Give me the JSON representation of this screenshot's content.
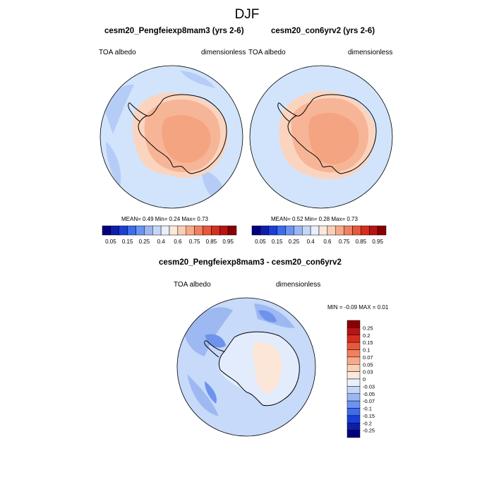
{
  "page_title": "DJF",
  "panels": [
    {
      "title": "cesm20_Pengfeiexp8mam3 (yrs 2-6)",
      "left_label": "TOA albedo",
      "right_label": "dimensionless",
      "stats": "MEAN=   0.49  Min=   0.24  Max=   0.73"
    },
    {
      "title": "cesm20_con6yrv2 (yrs 2-6)",
      "left_label": "TOA albedo",
      "right_label": "dimensionless",
      "stats": "MEAN=   0.52  Min=   0.28  Max=   0.73"
    },
    {
      "title": "cesm20_Pengfeiexp8mam3 - cesm20_con6yrv2",
      "left_label": "TOA albedo",
      "right_label": "dimensionless",
      "stats": "MIN =  -0.09 MAX =   0.01"
    }
  ],
  "chart_data": [
    {
      "type": "heatmap",
      "projection": "polar-stereographic-south",
      "variable": "TOA albedo",
      "units": "dimensionless",
      "title": "cesm20_Pengfeiexp8mam3 (yrs 2-6)",
      "mean": 0.49,
      "min": 0.24,
      "max": 0.73,
      "colorbar_ticks": [
        "0.05",
        "0.15",
        "0.25",
        "0.4",
        "0.6",
        "0.75",
        "0.85",
        "0.95"
      ]
    },
    {
      "type": "heatmap",
      "projection": "polar-stereographic-south",
      "variable": "TOA albedo",
      "units": "dimensionless",
      "title": "cesm20_con6yrv2 (yrs 2-6)",
      "mean": 0.52,
      "min": 0.28,
      "max": 0.73,
      "colorbar_ticks": [
        "0.05",
        "0.15",
        "0.25",
        "0.4",
        "0.6",
        "0.75",
        "0.85",
        "0.95"
      ]
    },
    {
      "type": "heatmap",
      "projection": "polar-stereographic-south",
      "variable": "TOA albedo",
      "units": "dimensionless",
      "title": "cesm20_Pengfeiexp8mam3 - cesm20_con6yrv2",
      "min": -0.09,
      "max": 0.01,
      "colorbar_ticks": [
        "0.25",
        "0.2",
        "0.15",
        "0.1",
        "0.07",
        "0.05",
        "0.03",
        "0",
        "-0.03",
        "-0.05",
        "-0.07",
        "-0.1",
        "-0.15",
        "-0.2",
        "-0.25"
      ]
    }
  ],
  "colors": {
    "h_colorbar": [
      "#00007f",
      "#0d1fa8",
      "#1a3fd8",
      "#3d6cf0",
      "#6b94f2",
      "#9bb6f4",
      "#c5d7f8",
      "#e8f0fd",
      "#fce9dc",
      "#fbcfb5",
      "#f7aa8a",
      "#f28060",
      "#e8583a",
      "#d52e1e",
      "#b81414",
      "#8a0000"
    ],
    "v_colorbar": [
      "#8a0000",
      "#b81414",
      "#d52e1e",
      "#e8583a",
      "#f28060",
      "#f7aa8a",
      "#fbcfb5",
      "#fce9dc",
      "#e8f0fd",
      "#c5d7f8",
      "#9bb6f4",
      "#6b94f2",
      "#3d6cf0",
      "#1a3fd8",
      "#0d1fa8",
      "#00007f"
    ],
    "ocean": "#d2e4fb",
    "ocean_dark": "#b5cdf6",
    "ice_light": "#fbd4bf",
    "ice_mid": "#f7b597",
    "ice_core": "#f4a481",
    "diff_bg": "#c7daf9",
    "diff_mid": "#9eb9f1",
    "diff_dark": "#6d93ec",
    "diff_land": "#e3ecfc",
    "diff_warm": "#fbe6d8"
  }
}
